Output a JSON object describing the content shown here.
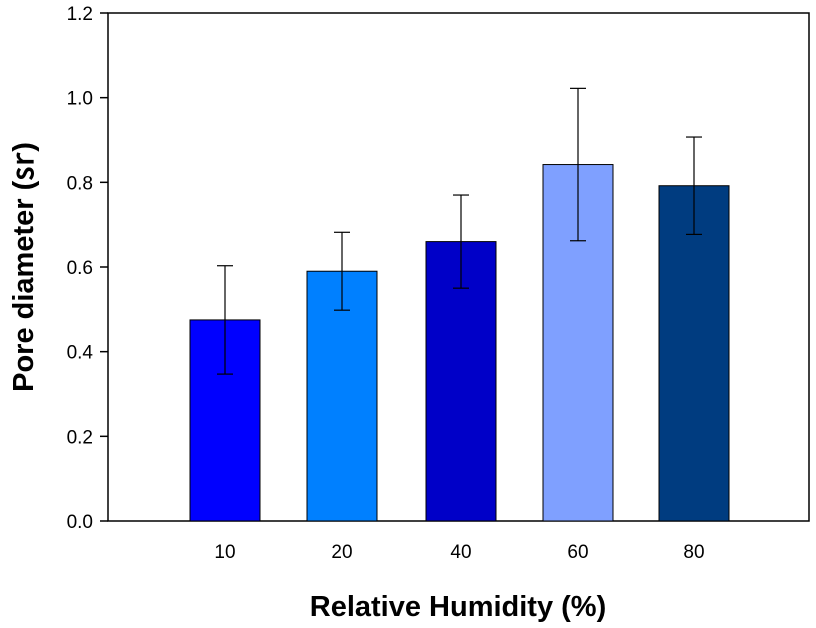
{
  "chart_data": {
    "type": "bar",
    "title": "",
    "xlabel": "Relative Humidity (%)",
    "ylabel": "Pore diameter (㏛)",
    "categories": [
      "10",
      "20",
      "40",
      "60",
      "80"
    ],
    "values": [
      0.475,
      0.59,
      0.66,
      0.842,
      0.792
    ],
    "errors": [
      0.128,
      0.092,
      0.11,
      0.18,
      0.115
    ],
    "colors": [
      "#0000ff",
      "#0080ff",
      "#0000c8",
      "#7fa0ff",
      "#003c80"
    ],
    "ylim": [
      0,
      1.2
    ],
    "yticks": [
      "0.0",
      "0.2",
      "0.4",
      "0.6",
      "0.8",
      "1.0",
      "1.2"
    ],
    "grid": false,
    "legend": "none"
  }
}
